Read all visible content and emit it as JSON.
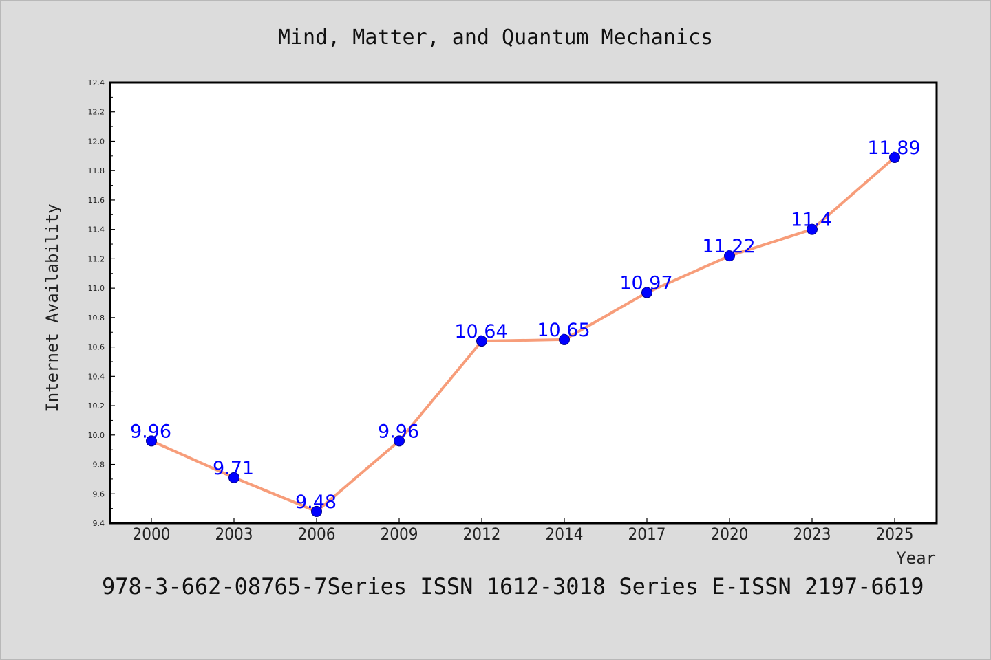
{
  "chart_data": {
    "type": "line",
    "title": "Mind, Matter, and Quantum Mechanics",
    "xlabel": "Year",
    "ylabel": "Internet Availability",
    "categories": [
      "2000",
      "2003",
      "2006",
      "2009",
      "2012",
      "2014",
      "2017",
      "2020",
      "2023",
      "2025"
    ],
    "series": [
      {
        "values": [
          9.96,
          9.71,
          9.48,
          9.96,
          10.64,
          10.65,
          10.97,
          11.22,
          11.4,
          11.89
        ],
        "labels": [
          "9.96",
          "9.71",
          "9.48",
          "9.96",
          "10.64",
          "10.65",
          "10.97",
          "11.22",
          "11.4",
          "11.89"
        ],
        "line_color": "#f79d7a",
        "marker_color": "#0000ff"
      }
    ],
    "ylim": [
      9.4,
      12.4
    ],
    "yticks": [
      "9.4",
      "9.6",
      "9.8",
      "10.0",
      "10.2",
      "10.4",
      "10.6",
      "10.8",
      "11.0",
      "11.2",
      "11.4",
      "11.6",
      "11.8",
      "12.0",
      "12.2",
      "12.4"
    ],
    "grid": false,
    "legend": "none"
  },
  "footer_text": "978-3-662-08765-7Series ISSN 1612-3018 Series E-ISSN 2197-6619",
  "colors": {
    "background": "#dcdcdc",
    "plot_background": "#ffffff",
    "axis": "#000000",
    "data_label": "#0000ff"
  }
}
